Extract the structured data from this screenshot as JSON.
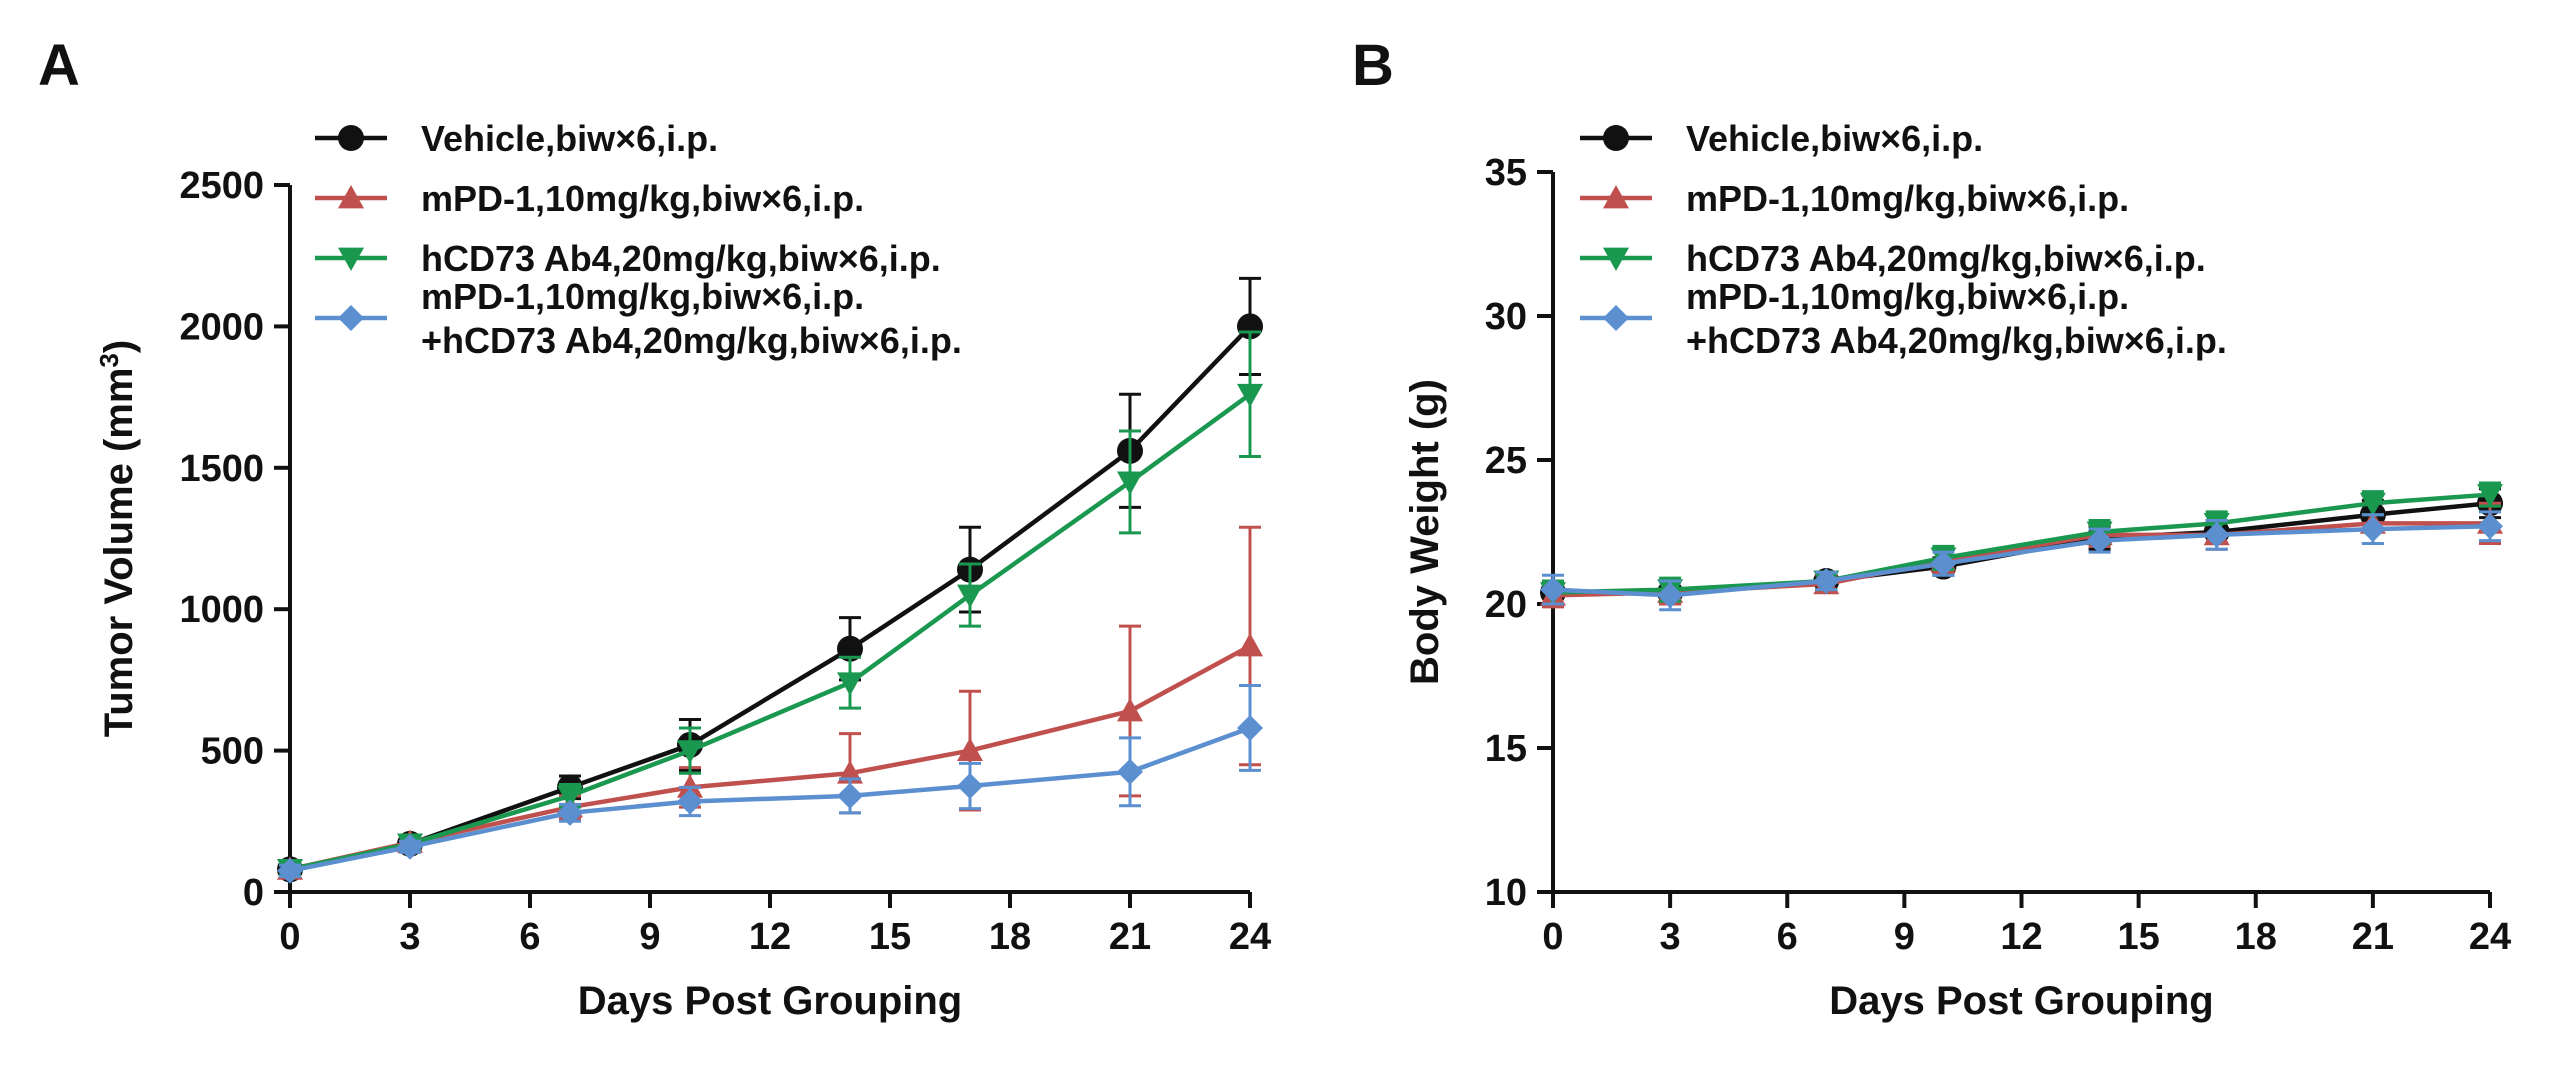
{
  "colors": {
    "vehicle": "#111111",
    "mpd1": "#c0504d",
    "hcd73": "#1a9850",
    "combo": "#5b8fd0"
  },
  "chart_data": [
    {
      "panel": "A",
      "type": "line",
      "xlabel": "Days Post Grouping",
      "ylabel": "Tumor Volume (mm",
      "ylabel_sup": "3",
      "ylabel_close": ")",
      "xlim": [
        0,
        24
      ],
      "ylim": [
        0,
        2500
      ],
      "xticks": [
        0,
        3,
        6,
        9,
        12,
        15,
        18,
        21,
        24
      ],
      "yticks": [
        0,
        500,
        1000,
        1500,
        2000,
        2500
      ],
      "x": [
        0,
        3,
        7,
        10,
        14,
        17,
        21,
        24
      ],
      "legend_position": "top-left",
      "series": [
        {
          "name": "Vehicle,biw×6,i.p.",
          "color": "#111111",
          "marker": "circle",
          "values": [
            80,
            170,
            370,
            520,
            860,
            1140,
            1560,
            2000
          ],
          "errors": [
            20,
            25,
            40,
            90,
            110,
            150,
            200,
            170
          ]
        },
        {
          "name": "mPD-1,10mg/kg,biw×6,i.p.",
          "color": "#c0504d",
          "marker": "triangle-up",
          "values": [
            80,
            175,
            300,
            370,
            420,
            500,
            640,
            870
          ],
          "errors": [
            20,
            25,
            40,
            70,
            140,
            210,
            300,
            420
          ]
        },
        {
          "name": "hCD73 Ab4,20mg/kg,biw×6,i.p.",
          "color": "#1a9850",
          "marker": "triangle-down",
          "values": [
            80,
            170,
            340,
            500,
            740,
            1050,
            1450,
            1760
          ],
          "errors": [
            20,
            25,
            40,
            80,
            90,
            110,
            180,
            220
          ]
        },
        {
          "name_lines": [
            "mPD-1,10mg/kg,biw×6,i.p.",
            "+hCD73 Ab4,20mg/kg,biw×6,i.p."
          ],
          "color": "#5b8fd0",
          "marker": "diamond",
          "values": [
            75,
            160,
            280,
            320,
            340,
            375,
            425,
            580
          ],
          "errors": [
            20,
            20,
            30,
            50,
            60,
            80,
            120,
            150
          ]
        }
      ]
    },
    {
      "panel": "B",
      "type": "line",
      "xlabel": "Days Post Grouping",
      "ylabel": "Body Weight (g)",
      "xlim": [
        0,
        24
      ],
      "ylim": [
        10,
        35
      ],
      "xticks": [
        0,
        3,
        6,
        9,
        12,
        15,
        18,
        21,
        24
      ],
      "yticks": [
        10,
        15,
        20,
        25,
        30,
        35
      ],
      "x": [
        0,
        3,
        7,
        10,
        14,
        17,
        21,
        24
      ],
      "legend_position": "top-left",
      "series": [
        {
          "name": "Vehicle,biw×6,i.p.",
          "color": "#111111",
          "marker": "circle",
          "values": [
            20.4,
            20.4,
            20.8,
            21.3,
            22.3,
            22.5,
            23.1,
            23.5
          ],
          "errors": [
            0.4,
            0.4,
            0.3,
            0.3,
            0.4,
            0.4,
            0.5,
            0.5
          ]
        },
        {
          "name": "mPD-1,10mg/kg,biw×6,i.p.",
          "color": "#c0504d",
          "marker": "triangle-up",
          "values": [
            20.3,
            20.4,
            20.7,
            21.5,
            22.4,
            22.4,
            22.8,
            22.8
          ],
          "errors": [
            0.4,
            0.4,
            0.3,
            0.4,
            0.4,
            0.5,
            0.7,
            0.7
          ]
        },
        {
          "name": "hCD73 Ab4,20mg/kg,biw×6,i.p.",
          "color": "#1a9850",
          "marker": "triangle-down",
          "values": [
            20.4,
            20.5,
            20.8,
            21.6,
            22.5,
            22.8,
            23.5,
            23.8
          ],
          "errors": [
            0.4,
            0.4,
            0.3,
            0.4,
            0.4,
            0.4,
            0.4,
            0.4
          ]
        },
        {
          "name_lines": [
            "mPD-1,10mg/kg,biw×6,i.p.",
            "+hCD73 Ab4,20mg/kg,biw×6,i.p."
          ],
          "color": "#5b8fd0",
          "marker": "diamond",
          "values": [
            20.5,
            20.3,
            20.8,
            21.4,
            22.2,
            22.4,
            22.6,
            22.7
          ],
          "errors": [
            0.5,
            0.5,
            0.3,
            0.4,
            0.4,
            0.5,
            0.5,
            0.5
          ]
        }
      ]
    }
  ]
}
